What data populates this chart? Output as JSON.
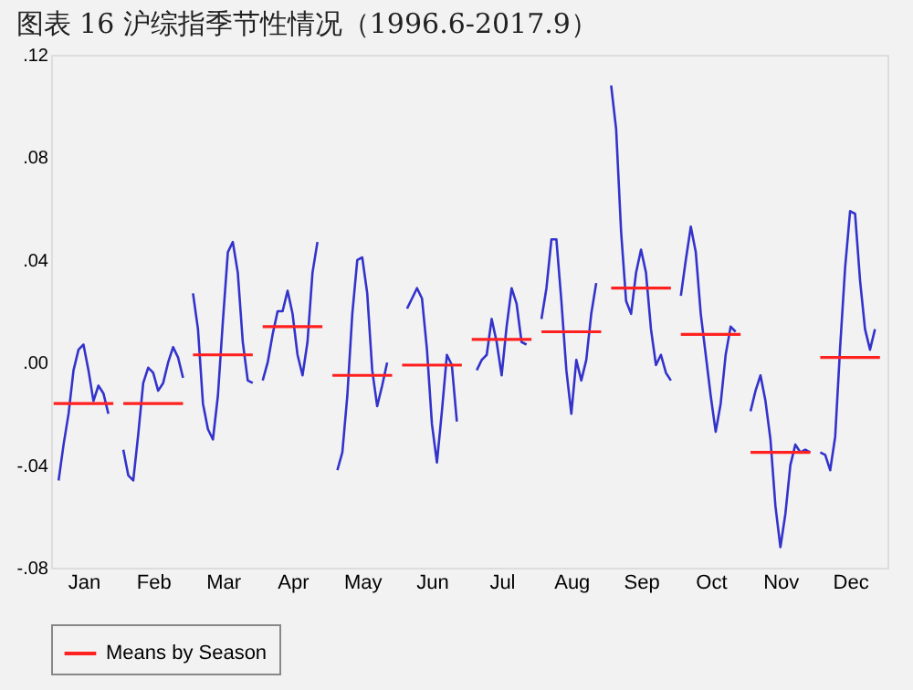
{
  "chart_data": {
    "type": "line",
    "title": "图表 16 沪综指季节性情况（1996.6-2017.9）",
    "categories": [
      null,
      null,
      null,
      null,
      null,
      null,
      "Jan",
      null,
      null,
      null,
      null,
      null,
      null,
      null,
      null,
      null,
      null,
      null,
      null,
      null,
      "Feb",
      null,
      null,
      null,
      null,
      null,
      null,
      null,
      null,
      null,
      null,
      null,
      null,
      null,
      "Mar",
      null,
      null,
      null,
      null,
      null,
      null,
      null,
      null,
      null,
      null,
      null,
      null,
      null,
      "Apr",
      null,
      null,
      null,
      null,
      null,
      null,
      null,
      null,
      null,
      null,
      null,
      null,
      null,
      "May",
      null,
      null,
      null,
      null,
      null,
      null,
      null,
      null,
      null,
      null,
      null,
      null,
      null,
      "Jun",
      null,
      null,
      null,
      null,
      null,
      null,
      null,
      null,
      null,
      null,
      null,
      null,
      null,
      "Jul",
      null,
      null,
      null,
      null,
      null,
      null,
      null,
      null,
      null,
      null,
      null,
      null,
      null,
      "Aug",
      null,
      null,
      null,
      null,
      null,
      null,
      null,
      null,
      null,
      null,
      null,
      null,
      null,
      "Sep",
      null,
      null,
      null,
      null,
      null,
      null,
      null,
      null,
      null,
      null,
      null,
      null,
      null,
      "Oct",
      null,
      null,
      null,
      null,
      null,
      null,
      null,
      null,
      null,
      null,
      null,
      null,
      null,
      "Nov",
      null,
      null,
      null,
      null,
      null,
      null,
      null,
      null,
      null,
      null,
      null,
      null,
      null,
      "Dec",
      null,
      null,
      null,
      null,
      null,
      null,
      null
    ],
    "ylim": [
      -0.08,
      0.12
    ],
    "yticks": [
      {
        "value": -0.08,
        "label": "-.08"
      },
      {
        "value": -0.04,
        "label": "-.04"
      },
      {
        "value": 0,
        "label": ".00"
      },
      {
        "value": 0.04,
        "label": ".04"
      },
      {
        "value": 0.08,
        "label": ".08"
      },
      {
        "value": 0.12,
        "label": ".12"
      }
    ],
    "grid": false,
    "legend": "bottom",
    "line_style": "solid",
    "marker": "none",
    "series": [
      {
        "color": "#3333cc",
        "values": [
          null,
          -0.046,
          -0.032,
          -0.02,
          -0.003,
          0.005,
          0.007,
          -0.003,
          -0.015,
          -0.009,
          -0.012,
          -0.02,
          null,
          null,
          -0.034,
          -0.044,
          -0.046,
          -0.028,
          -0.008,
          -0.002,
          -0.004,
          -0.011,
          -0.008,
          0.0,
          0.006,
          0.002,
          -0.006,
          null,
          0.027,
          0.013,
          -0.016,
          -0.026,
          -0.03,
          -0.013,
          0.016,
          0.043,
          0.047,
          0.035,
          0.008,
          -0.007,
          -0.008,
          null,
          -0.007,
          0.0,
          0.011,
          0.02,
          0.02,
          0.028,
          0.019,
          0.003,
          -0.005,
          0.008,
          0.035,
          0.047,
          null,
          null,
          null,
          -0.042,
          -0.035,
          -0.013,
          0.019,
          0.04,
          0.041,
          0.027,
          -0.003,
          -0.017,
          -0.009,
          0.0,
          null,
          null,
          null,
          0.021,
          0.025,
          0.029,
          0.025,
          0.005,
          -0.024,
          -0.039,
          -0.019,
          0.003,
          -0.001,
          -0.023,
          null,
          null,
          null,
          -0.003,
          0.001,
          0.003,
          0.017,
          0.008,
          -0.005,
          0.014,
          0.029,
          0.023,
          0.008,
          0.007,
          null,
          null,
          0.017,
          0.029,
          0.048,
          0.048,
          0.024,
          -0.003,
          -0.02,
          0.001,
          -0.007,
          0.001,
          0.019,
          0.031,
          null,
          null,
          0.108,
          0.091,
          0.051,
          0.024,
          0.019,
          0.035,
          0.044,
          0.035,
          0.013,
          -0.001,
          0.003,
          -0.004,
          -0.007,
          null,
          0.026,
          0.04,
          0.053,
          0.043,
          0.019,
          0.003,
          -0.013,
          -0.027,
          -0.016,
          0.003,
          0.014,
          0.012,
          null,
          null,
          -0.019,
          -0.011,
          -0.005,
          -0.015,
          -0.03,
          -0.056,
          -0.072,
          -0.059,
          -0.04,
          -0.032,
          -0.035,
          -0.034,
          -0.035,
          null,
          -0.035,
          -0.036,
          -0.042,
          -0.029,
          0.006,
          0.037,
          0.059,
          0.058,
          0.032,
          0.013,
          0.005,
          0.013,
          null,
          null
        ]
      },
      {
        "name": "Means by Season",
        "color": "#ff2020",
        "values": [
          -0.016,
          -0.016,
          -0.016,
          -0.016,
          -0.016,
          -0.016,
          -0.016,
          -0.016,
          -0.016,
          -0.016,
          -0.016,
          -0.016,
          -0.016,
          null,
          -0.016,
          -0.016,
          -0.016,
          -0.016,
          -0.016,
          -0.016,
          -0.016,
          -0.016,
          -0.016,
          -0.016,
          -0.016,
          -0.016,
          -0.016,
          null,
          0.003,
          0.003,
          0.003,
          0.003,
          0.003,
          0.003,
          0.003,
          0.003,
          0.003,
          0.003,
          0.003,
          0.003,
          0.003,
          null,
          0.014,
          0.014,
          0.014,
          0.014,
          0.014,
          0.014,
          0.014,
          0.014,
          0.014,
          0.014,
          0.014,
          0.014,
          0.014,
          null,
          -0.005,
          -0.005,
          -0.005,
          -0.005,
          -0.005,
          -0.005,
          -0.005,
          -0.005,
          -0.005,
          -0.005,
          -0.005,
          -0.005,
          -0.005,
          null,
          -0.001,
          -0.001,
          -0.001,
          -0.001,
          -0.001,
          -0.001,
          -0.001,
          -0.001,
          -0.001,
          -0.001,
          -0.001,
          -0.001,
          -0.001,
          null,
          0.009,
          0.009,
          0.009,
          0.009,
          0.009,
          0.009,
          0.009,
          0.009,
          0.009,
          0.009,
          0.009,
          0.009,
          0.009,
          null,
          0.012,
          0.012,
          0.012,
          0.012,
          0.012,
          0.012,
          0.012,
          0.012,
          0.012,
          0.012,
          0.012,
          0.012,
          0.012,
          null,
          0.029,
          0.029,
          0.029,
          0.029,
          0.029,
          0.029,
          0.029,
          0.029,
          0.029,
          0.029,
          0.029,
          0.029,
          0.029,
          null,
          0.011,
          0.011,
          0.011,
          0.011,
          0.011,
          0.011,
          0.011,
          0.011,
          0.011,
          0.011,
          0.011,
          0.011,
          0.011,
          null,
          -0.035,
          -0.035,
          -0.035,
          -0.035,
          -0.035,
          -0.035,
          -0.035,
          -0.035,
          -0.035,
          -0.035,
          -0.035,
          -0.035,
          -0.035,
          null,
          0.002,
          0.002,
          0.002,
          0.002,
          0.002,
          0.002,
          0.002,
          0.002,
          0.002,
          0.002,
          0.002,
          0.002,
          0.002,
          null
        ]
      }
    ]
  }
}
